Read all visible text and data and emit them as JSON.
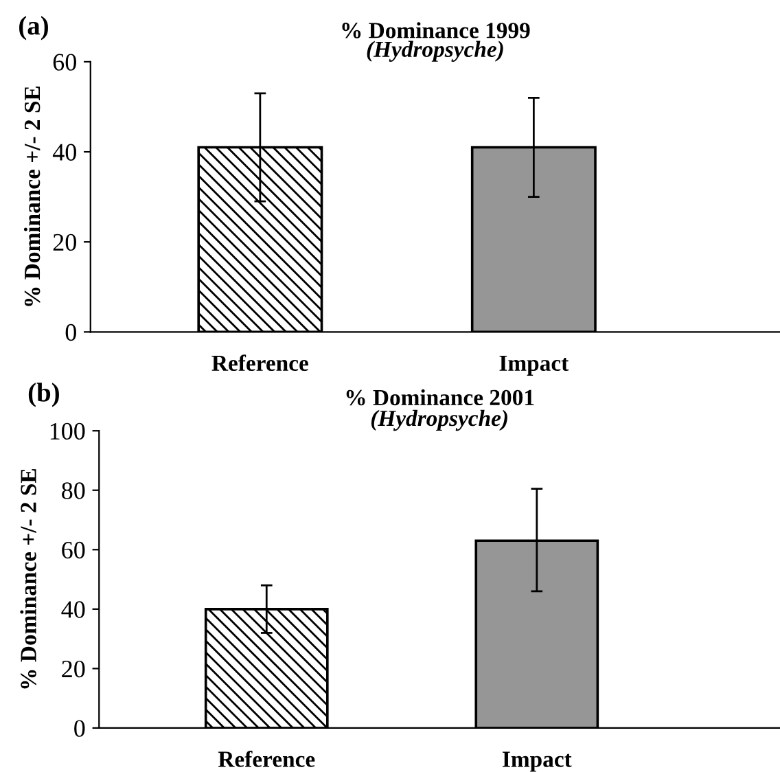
{
  "chart_data": [
    {
      "type": "bar",
      "title": "% Dominance 1999",
      "subtitle": "(Hydropsyche)",
      "ylabel": "% Dominance +/- 2 SE",
      "annotations": [
        "(a)"
      ],
      "categories": [
        "Reference",
        "Impact"
      ],
      "values": [
        41,
        41
      ],
      "errors": [
        [
          29,
          53
        ],
        [
          30,
          52
        ]
      ],
      "colors": [
        "#000000",
        "#969696"
      ],
      "ylim": [
        0,
        60
      ],
      "yticks": [
        0,
        20,
        40,
        60
      ],
      "grid": false,
      "legend": false
    },
    {
      "type": "bar",
      "title": "% Dominance 2001",
      "subtitle": "(Hydropsyche)",
      "ylabel": "% Dominance +/- 2 SE",
      "annotations": [
        "(b)"
      ],
      "categories": [
        "Reference",
        "Impact"
      ],
      "values": [
        40,
        63
      ],
      "errors": [
        [
          32,
          48
        ],
        [
          46,
          80.5
        ]
      ],
      "colors": [
        "#000000",
        "#969696"
      ],
      "ylim": [
        0,
        100
      ],
      "yticks": [
        0,
        20,
        40,
        60,
        80,
        100
      ],
      "grid": false,
      "legend": false
    }
  ]
}
